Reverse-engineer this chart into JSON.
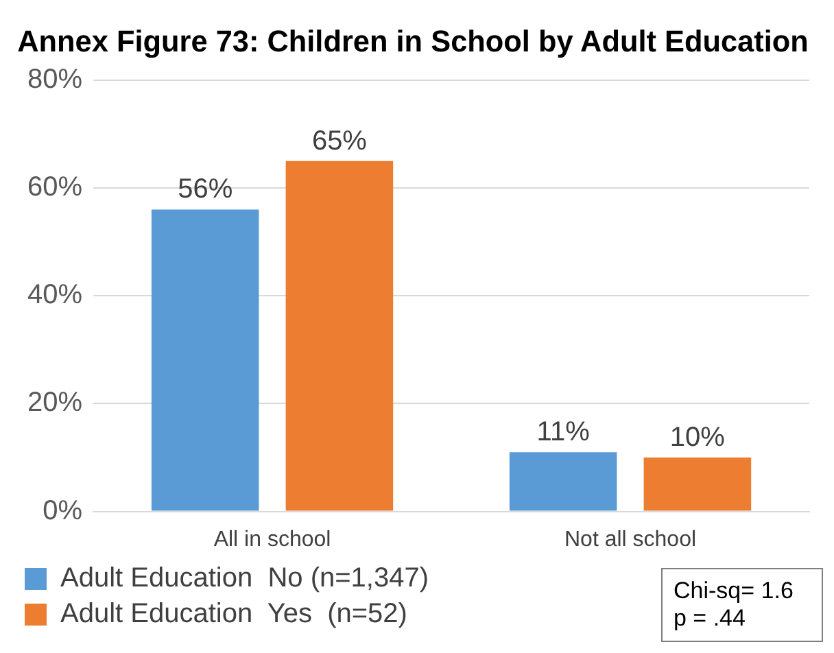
{
  "chart_data": {
    "type": "bar",
    "title": "Annex Figure 73: Children in School by Adult Education",
    "categories": [
      "All in school",
      "Not all school"
    ],
    "series": [
      {
        "name": "Adult Education  No (n=1,347)",
        "color": "#5b9bd5",
        "values": [
          56,
          11
        ],
        "value_labels": [
          "56%",
          "11%"
        ]
      },
      {
        "name": "Adult Education  Yes  (n=52)",
        "color": "#ed7d31",
        "values": [
          65,
          10
        ],
        "value_labels": [
          "65%",
          "10%"
        ]
      }
    ],
    "ylim": [
      0,
      80
    ],
    "yticks": [
      {
        "value": 0,
        "label": "0%"
      },
      {
        "value": 20,
        "label": "20%"
      },
      {
        "value": 40,
        "label": "40%"
      },
      {
        "value": 60,
        "label": "60%"
      },
      {
        "value": 80,
        "label": "80%"
      }
    ],
    "grid": "y",
    "legend": "bottom",
    "annotations": [
      "Chi-sq= 1.6\np = .44"
    ]
  }
}
